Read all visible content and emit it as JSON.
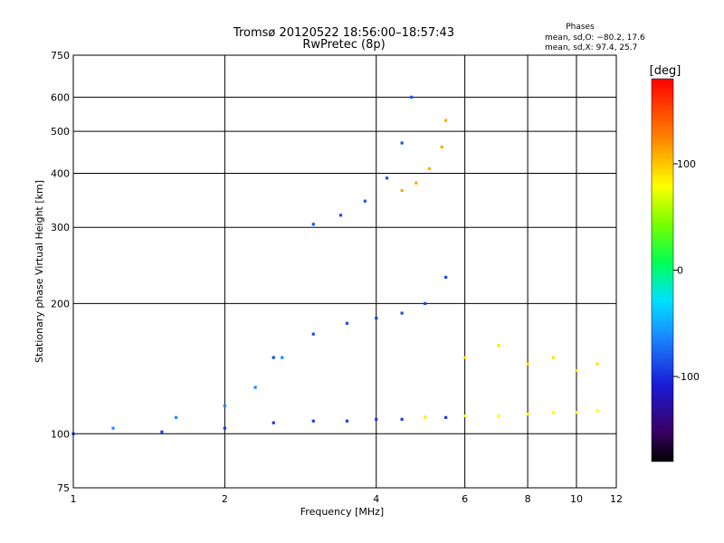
{
  "chart_data": {
    "type": "scatter",
    "title": "Tromsø 20120522 18:56:00–18:57:43",
    "subtitle": "RwPretec (8p)",
    "xlabel": "Frequency [MHz]",
    "ylabel": "Stationary phase Virtual Height [km]",
    "x_scale": "log",
    "y_scale": "log",
    "xlim": [
      1,
      12
    ],
    "ylim": [
      75,
      750
    ],
    "x_ticks": [
      1,
      2,
      4,
      6,
      8,
      10,
      12
    ],
    "y_ticks": [
      75,
      100,
      200,
      300,
      400,
      500,
      600,
      750
    ],
    "grid": true,
    "phases": {
      "heading": "Phases",
      "line1": "mean, sd,O: −80.2, 17.6",
      "line2": "mean, sd,X:  97.4, 25.7"
    },
    "colorbar": {
      "label": "[deg]",
      "ticks": [
        100,
        0,
        -100
      ],
      "range": [
        -180,
        180
      ]
    },
    "traces": [
      {
        "x": [
          1.0,
          1.5,
          2.0,
          2.5,
          3.0,
          3.5,
          4.0,
          4.5,
          5.0,
          5.5
        ],
        "y": [
          100,
          101,
          103,
          106,
          107,
          107,
          108,
          108,
          109,
          109
        ],
        "phase": -95
      },
      {
        "x": [
          1.2,
          1.6,
          2.0,
          2.3,
          2.6
        ],
        "y": [
          103,
          109,
          116,
          128,
          150
        ],
        "phase": -60
      },
      {
        "x": [
          3.0,
          3.4,
          3.8,
          4.2,
          4.5,
          4.7
        ],
        "y": [
          305,
          320,
          345,
          390,
          470,
          600
        ],
        "phase": -85
      },
      {
        "x": [
          4.5,
          4.8,
          5.1,
          5.4,
          5.5
        ],
        "y": [
          365,
          380,
          410,
          460,
          530
        ],
        "phase": 110
      },
      {
        "x": [
          2.5,
          3.0,
          3.5,
          4.0,
          4.5,
          5.0,
          5.5
        ],
        "y": [
          150,
          170,
          180,
          185,
          190,
          200,
          230
        ],
        "phase": -90
      },
      {
        "x": [
          5.0,
          6.0,
          7.0,
          8.0,
          9.0,
          10.0,
          11.0
        ],
        "y": [
          109,
          110,
          110,
          111,
          112,
          112,
          113
        ],
        "phase": 80
      },
      {
        "x": [
          6.0,
          7.0,
          8.0,
          9.0,
          10.0,
          11.0
        ],
        "y": [
          150,
          160,
          145,
          150,
          140,
          145
        ],
        "phase": 90
      }
    ]
  }
}
